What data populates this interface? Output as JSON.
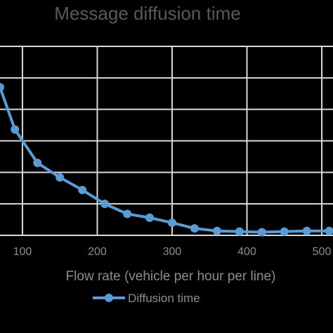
{
  "chart_data": {
    "type": "line",
    "title": "Message diffusion time",
    "xlabel": "Flow rate (vehicle per hour per line)",
    "ylabel": "",
    "xlim": [
      70,
      515
    ],
    "ylim": [
      0,
      3
    ],
    "x_ticks": [
      "100",
      "200",
      "300",
      "400",
      "500"
    ],
    "grid": true,
    "legend_position": "bottom",
    "series": [
      {
        "name": "Diffusion time",
        "color": "#5b9bd5",
        "x": [
          70,
          90,
          120,
          150,
          180,
          210,
          240,
          270,
          300,
          330,
          360,
          390,
          420,
          450,
          480,
          510
        ],
        "y": [
          2.35,
          1.68,
          1.15,
          0.92,
          0.72,
          0.5,
          0.34,
          0.28,
          0.2,
          0.11,
          0.07,
          0.06,
          0.05,
          0.06,
          0.07,
          0.07
        ]
      }
    ]
  }
}
